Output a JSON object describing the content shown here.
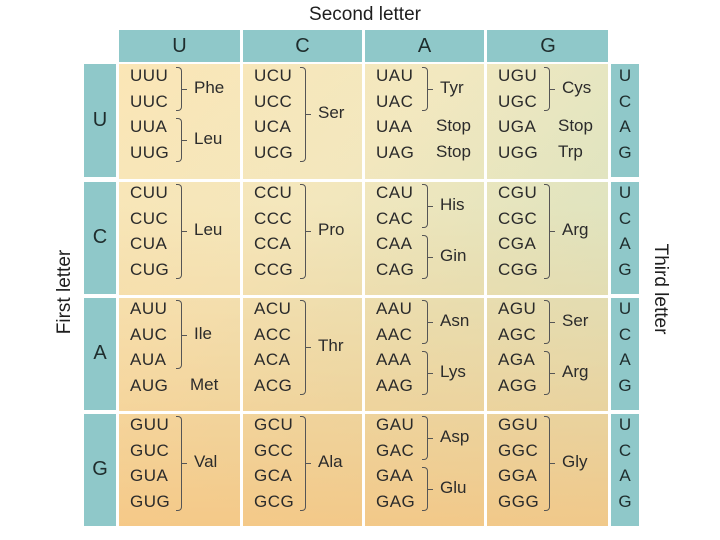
{
  "titles": {
    "second": "Second letter",
    "first": "First letter",
    "third": "Third letter"
  },
  "second_letters": [
    "U",
    "C",
    "A",
    "G"
  ],
  "first_letters": [
    "U",
    "C",
    "A",
    "G"
  ],
  "third_letters": [
    "U",
    "C",
    "A",
    "G"
  ],
  "rows": [
    {
      "first": "U",
      "blocks": [
        {
          "codons": [
            "UUU",
            "UUC",
            "UUA",
            "UUG"
          ],
          "groups": [
            {
              "label": "Phe",
              "codons": [
                "UUU",
                "UUC"
              ]
            },
            {
              "label": "Leu",
              "codons": [
                "UUA",
                "UUG"
              ]
            }
          ]
        },
        {
          "codons": [
            "UCU",
            "UCC",
            "UCA",
            "UCG"
          ],
          "groups": [
            {
              "label": "Ser",
              "codons": [
                "UCU",
                "UCC",
                "UCA",
                "UCG"
              ]
            }
          ]
        },
        {
          "codons": [
            "UAU",
            "UAC",
            "UAA",
            "UAG"
          ],
          "groups": [
            {
              "label": "Tyr",
              "codons": [
                "UAU",
                "UAC"
              ]
            },
            {
              "label": "Stop",
              "codons": [
                "UAA"
              ]
            },
            {
              "label": "Stop",
              "codons": [
                "UAG"
              ]
            }
          ]
        },
        {
          "codons": [
            "UGU",
            "UGC",
            "UGA",
            "UGG"
          ],
          "groups": [
            {
              "label": "Cys",
              "codons": [
                "UGU",
                "UGC"
              ]
            },
            {
              "label": "Stop",
              "codons": [
                "UGA"
              ]
            },
            {
              "label": "Trp",
              "codons": [
                "UGG"
              ]
            }
          ]
        }
      ]
    },
    {
      "first": "C",
      "blocks": [
        {
          "codons": [
            "CUU",
            "CUC",
            "CUA",
            "CUG"
          ],
          "groups": [
            {
              "label": "Leu",
              "codons": [
                "CUU",
                "CUC",
                "CUA",
                "CUG"
              ]
            }
          ]
        },
        {
          "codons": [
            "CCU",
            "CCC",
            "CCA",
            "CCG"
          ],
          "groups": [
            {
              "label": "Pro",
              "codons": [
                "CCU",
                "CCC",
                "CCA",
                "CCG"
              ]
            }
          ]
        },
        {
          "codons": [
            "CAU",
            "CAC",
            "CAA",
            "CAG"
          ],
          "groups": [
            {
              "label": "His",
              "codons": [
                "CAU",
                "CAC"
              ]
            },
            {
              "label": "Gin",
              "codons": [
                "CAA",
                "CAG"
              ]
            }
          ]
        },
        {
          "codons": [
            "CGU",
            "CGC",
            "CGA",
            "CGG"
          ],
          "groups": [
            {
              "label": "Arg",
              "codons": [
                "CGU",
                "CGC",
                "CGA",
                "CGG"
              ]
            }
          ]
        }
      ]
    },
    {
      "first": "A",
      "blocks": [
        {
          "codons": [
            "AUU",
            "AUC",
            "AUA",
            "AUG"
          ],
          "groups": [
            {
              "label": "Ile",
              "codons": [
                "AUU",
                "AUC",
                "AUA"
              ]
            },
            {
              "label": "Met",
              "codons": [
                "AUG"
              ]
            }
          ]
        },
        {
          "codons": [
            "ACU",
            "ACC",
            "ACA",
            "ACG"
          ],
          "groups": [
            {
              "label": "Thr",
              "codons": [
                "ACU",
                "ACC",
                "ACA",
                "ACG"
              ]
            }
          ]
        },
        {
          "codons": [
            "AAU",
            "AAC",
            "AAA",
            "AAG"
          ],
          "groups": [
            {
              "label": "Asn",
              "codons": [
                "AAU",
                "AAC"
              ]
            },
            {
              "label": "Lys",
              "codons": [
                "AAA",
                "AAG"
              ]
            }
          ]
        },
        {
          "codons": [
            "AGU",
            "AGC",
            "AGA",
            "AGG"
          ],
          "groups": [
            {
              "label": "Ser",
              "codons": [
                "AGU",
                "AGC"
              ]
            },
            {
              "label": "Arg",
              "codons": [
                "AGA",
                "AGG"
              ]
            }
          ]
        }
      ]
    },
    {
      "first": "G",
      "blocks": [
        {
          "codons": [
            "GUU",
            "GUC",
            "GUA",
            "GUG"
          ],
          "groups": [
            {
              "label": "Val",
              "codons": [
                "GUU",
                "GUC",
                "GUA",
                "GUG"
              ]
            }
          ]
        },
        {
          "codons": [
            "GCU",
            "GCC",
            "GCA",
            "GCG"
          ],
          "groups": [
            {
              "label": "Ala",
              "codons": [
                "GCU",
                "GCC",
                "GCA",
                "GCG"
              ]
            }
          ]
        },
        {
          "codons": [
            "GAU",
            "GAC",
            "GAA",
            "GAG"
          ],
          "groups": [
            {
              "label": "Asp",
              "codons": [
                "GAU",
                "GAC"
              ]
            },
            {
              "label": "Glu",
              "codons": [
                "GAA",
                "GAG"
              ]
            }
          ]
        },
        {
          "codons": [
            "GGU",
            "GGC",
            "GGA",
            "GGG"
          ],
          "groups": [
            {
              "label": "Gly",
              "codons": [
                "GGU",
                "GGC",
                "GGA",
                "GGG"
              ]
            }
          ]
        }
      ]
    }
  ],
  "colors": {
    "header_teal": "#8fc8c9",
    "cell_top": "#fbe6b6",
    "cell_bottom": "#f8c47e",
    "cell_teal_tint": "#c6e2cd"
  }
}
